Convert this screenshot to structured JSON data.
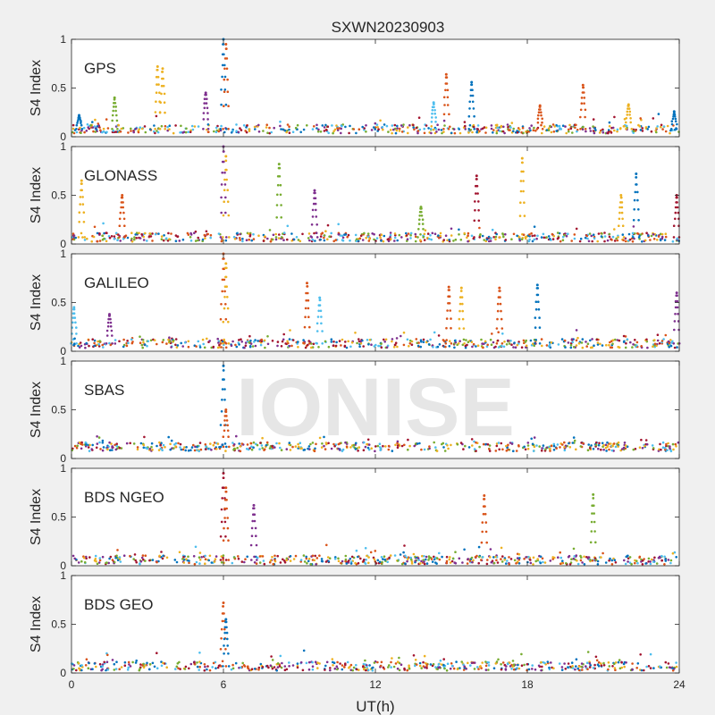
{
  "figure": {
    "title": "SXWN20230903",
    "xlabel": "UT(h)",
    "watermark": "IONISE",
    "background": "#f0f0f0",
    "axes_background": "#ffffff",
    "axis_color": "#262626"
  },
  "chart_data": [
    {
      "type": "scatter",
      "panel_label": "GPS",
      "ylabel": "S4 Index",
      "xlim": [
        0,
        24
      ],
      "ylim": [
        0,
        1
      ],
      "xticks": [
        0,
        6,
        12,
        18,
        24
      ],
      "yticks": [
        0,
        0.5,
        1
      ],
      "ytick_labels": [
        "0",
        "0.5",
        "1"
      ],
      "show_xtick_labels": false,
      "baseline": 0.08,
      "peaks": [
        {
          "x": 0.3,
          "y": 0.22,
          "color": "#0072bd"
        },
        {
          "x": 1.7,
          "y": 0.4,
          "color": "#77ac30"
        },
        {
          "x": 3.4,
          "y": 0.72,
          "color": "#edb120"
        },
        {
          "x": 3.6,
          "y": 0.7,
          "color": "#edb120"
        },
        {
          "x": 5.3,
          "y": 0.45,
          "color": "#7e2f8e"
        },
        {
          "x": 6.0,
          "y": 1.0,
          "color": "#0072bd"
        },
        {
          "x": 6.1,
          "y": 0.95,
          "color": "#d95319"
        },
        {
          "x": 14.3,
          "y": 0.35,
          "color": "#4dbeee"
        },
        {
          "x": 14.8,
          "y": 0.64,
          "color": "#d95319"
        },
        {
          "x": 15.8,
          "y": 0.56,
          "color": "#0072bd"
        },
        {
          "x": 18.5,
          "y": 0.32,
          "color": "#d95319"
        },
        {
          "x": 20.2,
          "y": 0.53,
          "color": "#d95319"
        },
        {
          "x": 22.0,
          "y": 0.33,
          "color": "#edb120"
        },
        {
          "x": 23.8,
          "y": 0.26,
          "color": "#0072bd"
        }
      ]
    },
    {
      "type": "scatter",
      "panel_label": "GLONASS",
      "ylabel": "S4 Index",
      "xlim": [
        0,
        24
      ],
      "ylim": [
        0,
        1
      ],
      "xticks": [
        0,
        6,
        12,
        18,
        24
      ],
      "yticks": [
        0,
        0.5,
        1
      ],
      "ytick_labels": [
        "0",
        "0.5",
        "1"
      ],
      "show_xtick_labels": false,
      "baseline": 0.07,
      "peaks": [
        {
          "x": 0.4,
          "y": 0.65,
          "color": "#edb120"
        },
        {
          "x": 2.0,
          "y": 0.5,
          "color": "#d95319"
        },
        {
          "x": 6.0,
          "y": 1.0,
          "color": "#7e2f8e"
        },
        {
          "x": 6.1,
          "y": 0.9,
          "color": "#edb120"
        },
        {
          "x": 8.2,
          "y": 0.82,
          "color": "#77ac30"
        },
        {
          "x": 9.6,
          "y": 0.55,
          "color": "#7e2f8e"
        },
        {
          "x": 13.8,
          "y": 0.38,
          "color": "#77ac30"
        },
        {
          "x": 16.0,
          "y": 0.7,
          "color": "#a2142f"
        },
        {
          "x": 17.8,
          "y": 0.88,
          "color": "#edb120"
        },
        {
          "x": 21.7,
          "y": 0.5,
          "color": "#edb120"
        },
        {
          "x": 22.3,
          "y": 0.72,
          "color": "#0072bd"
        },
        {
          "x": 23.9,
          "y": 0.5,
          "color": "#a2142f"
        }
      ]
    },
    {
      "type": "scatter",
      "panel_label": "GALILEO",
      "ylabel": "S4 Index",
      "xlim": [
        0,
        24
      ],
      "ylim": [
        0,
        1
      ],
      "xticks": [
        0,
        6,
        12,
        18,
        24
      ],
      "yticks": [
        0,
        0.5,
        1
      ],
      "ytick_labels": [
        "0",
        "0.5",
        "1"
      ],
      "show_xtick_labels": false,
      "baseline": 0.08,
      "peaks": [
        {
          "x": 0.1,
          "y": 0.45,
          "color": "#4dbeee"
        },
        {
          "x": 1.5,
          "y": 0.38,
          "color": "#7e2f8e"
        },
        {
          "x": 6.0,
          "y": 1.0,
          "color": "#d95319"
        },
        {
          "x": 6.1,
          "y": 0.9,
          "color": "#edb120"
        },
        {
          "x": 9.3,
          "y": 0.7,
          "color": "#d95319"
        },
        {
          "x": 9.8,
          "y": 0.55,
          "color": "#4dbeee"
        },
        {
          "x": 14.9,
          "y": 0.66,
          "color": "#d95319"
        },
        {
          "x": 15.4,
          "y": 0.65,
          "color": "#edb120"
        },
        {
          "x": 16.9,
          "y": 0.65,
          "color": "#d95319"
        },
        {
          "x": 18.4,
          "y": 0.68,
          "color": "#0072bd"
        },
        {
          "x": 23.9,
          "y": 0.6,
          "color": "#7e2f8e"
        }
      ]
    },
    {
      "type": "scatter",
      "panel_label": "SBAS",
      "ylabel": "S4 Index",
      "xlim": [
        0,
        24
      ],
      "ylim": [
        0,
        1
      ],
      "xticks": [
        0,
        6,
        12,
        18,
        24
      ],
      "yticks": [
        0,
        0.5,
        1
      ],
      "ytick_labels": [
        "0",
        "0.5",
        "1"
      ],
      "show_xtick_labels": false,
      "baseline": 0.12,
      "peaks": [
        {
          "x": 6.0,
          "y": 0.95,
          "color": "#0072bd"
        },
        {
          "x": 6.1,
          "y": 0.5,
          "color": "#d95319"
        }
      ]
    },
    {
      "type": "scatter",
      "panel_label": "BDS NGEO",
      "ylabel": "S4 Index",
      "xlim": [
        0,
        24
      ],
      "ylim": [
        0,
        1
      ],
      "xticks": [
        0,
        6,
        12,
        18,
        24
      ],
      "yticks": [
        0,
        0.5,
        1
      ],
      "ytick_labels": [
        "0",
        "0.5",
        "1"
      ],
      "show_xtick_labels": false,
      "baseline": 0.06,
      "peaks": [
        {
          "x": 6.0,
          "y": 0.95,
          "color": "#a2142f"
        },
        {
          "x": 6.1,
          "y": 0.8,
          "color": "#d95319"
        },
        {
          "x": 7.2,
          "y": 0.62,
          "color": "#7e2f8e"
        },
        {
          "x": 16.3,
          "y": 0.72,
          "color": "#d95319"
        },
        {
          "x": 20.6,
          "y": 0.73,
          "color": "#77ac30"
        }
      ]
    },
    {
      "type": "scatter",
      "panel_label": "BDS GEO",
      "ylabel": "S4 Index",
      "xlim": [
        0,
        24
      ],
      "ylim": [
        0,
        1
      ],
      "xticks": [
        0,
        6,
        12,
        18,
        24
      ],
      "yticks": [
        0,
        0.5,
        1
      ],
      "ytick_labels": [
        "0",
        "0.5",
        "1"
      ],
      "xtick_labels": [
        "0",
        "6",
        "12",
        "18",
        "24"
      ],
      "show_xtick_labels": true,
      "baseline": 0.07,
      "peaks": [
        {
          "x": 6.0,
          "y": 0.72,
          "color": "#d95319"
        },
        {
          "x": 6.1,
          "y": 0.55,
          "color": "#0072bd"
        }
      ]
    }
  ]
}
